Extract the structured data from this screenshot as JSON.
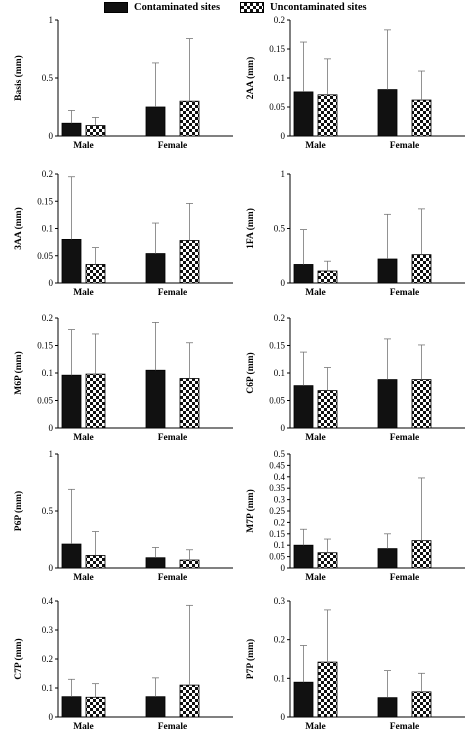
{
  "legend": {
    "contaminated": "Contaminated sites",
    "uncontaminated": "Uncontaminated sites"
  },
  "colors": {
    "contaminated_fill": "#111111",
    "uncontaminated_pattern": "black-white checkerboard"
  },
  "chart_data": [
    {
      "type": "bar",
      "ylabel": "Basis (mm)",
      "ylim": [
        0,
        1
      ],
      "yticks": [
        "0",
        "0.5",
        "1"
      ],
      "categories": [
        "Male",
        "Female"
      ],
      "series": [
        {
          "name": "Contaminated sites",
          "values": [
            0.11,
            0.25
          ],
          "error": [
            0.11,
            0.38
          ]
        },
        {
          "name": "Uncontaminated sites",
          "values": [
            0.09,
            0.3
          ],
          "error": [
            0.07,
            0.54
          ]
        }
      ]
    },
    {
      "type": "bar",
      "ylabel": "2AA (mm)",
      "ylim": [
        0,
        0.2
      ],
      "yticks": [
        "0",
        "0.05",
        "0.1",
        "0.15",
        "0.2"
      ],
      "categories": [
        "Male",
        "Female"
      ],
      "series": [
        {
          "name": "Contaminated sites",
          "values": [
            0.076,
            0.08
          ],
          "error": [
            0.086,
            0.103
          ]
        },
        {
          "name": "Uncontaminated sites",
          "values": [
            0.071,
            0.062
          ],
          "error": [
            0.062,
            0.05
          ]
        }
      ]
    },
    {
      "type": "bar",
      "ylabel": "3AA (mm)",
      "ylim": [
        0,
        0.2
      ],
      "yticks": [
        "0",
        "0.05",
        "0.1",
        "0.15",
        "0.2"
      ],
      "categories": [
        "Male",
        "Female"
      ],
      "series": [
        {
          "name": "Contaminated sites",
          "values": [
            0.08,
            0.054
          ],
          "error": [
            0.115,
            0.056
          ]
        },
        {
          "name": "Uncontaminated sites",
          "values": [
            0.034,
            0.078
          ],
          "error": [
            0.031,
            0.068
          ]
        }
      ]
    },
    {
      "type": "bar",
      "ylabel": "1FA (mm)",
      "ylim": [
        0,
        1
      ],
      "yticks": [
        "0",
        "0.5",
        "1"
      ],
      "categories": [
        "Male",
        "Female"
      ],
      "series": [
        {
          "name": "Contaminated sites",
          "values": [
            0.17,
            0.22
          ],
          "error": [
            0.32,
            0.41
          ]
        },
        {
          "name": "Uncontaminated sites",
          "values": [
            0.11,
            0.26
          ],
          "error": [
            0.09,
            0.42
          ]
        }
      ]
    },
    {
      "type": "bar",
      "ylabel": "M6P (mm)",
      "ylim": [
        0,
        0.2
      ],
      "yticks": [
        "0",
        "0.05",
        "0.1",
        "0.15",
        "0.2"
      ],
      "categories": [
        "Male",
        "Female"
      ],
      "series": [
        {
          "name": "Contaminated sites",
          "values": [
            0.096,
            0.105
          ],
          "error": [
            0.083,
            0.087
          ]
        },
        {
          "name": "Uncontaminated sites",
          "values": [
            0.098,
            0.09
          ],
          "error": [
            0.073,
            0.065
          ]
        }
      ]
    },
    {
      "type": "bar",
      "ylabel": "C6P (mm)",
      "ylim": [
        0,
        0.2
      ],
      "yticks": [
        "0",
        "0.05",
        "0.1",
        "0.15",
        "0.2"
      ],
      "categories": [
        "Male",
        "Female"
      ],
      "series": [
        {
          "name": "Contaminated sites",
          "values": [
            0.077,
            0.088
          ],
          "error": [
            0.061,
            0.074
          ]
        },
        {
          "name": "Uncontaminated sites",
          "values": [
            0.068,
            0.088
          ],
          "error": [
            0.042,
            0.063
          ]
        }
      ]
    },
    {
      "type": "bar",
      "ylabel": "P6P (mm)",
      "ylim": [
        0,
        1
      ],
      "yticks": [
        "0",
        "0.5",
        "1"
      ],
      "categories": [
        "Male",
        "Female"
      ],
      "series": [
        {
          "name": "Contaminated sites",
          "values": [
            0.21,
            0.09
          ],
          "error": [
            0.48,
            0.09
          ]
        },
        {
          "name": "Uncontaminated sites",
          "values": [
            0.11,
            0.07
          ],
          "error": [
            0.21,
            0.09
          ]
        }
      ]
    },
    {
      "type": "bar",
      "ylabel": "M7P (mm)",
      "ylim": [
        0,
        0.5
      ],
      "yticks": [
        "0",
        "0.05",
        "0.1",
        "0.15",
        "0.2",
        "0.25",
        "0.3",
        "0.35",
        "0.4",
        "0.45",
        "0.5"
      ],
      "categories": [
        "Male",
        "Female"
      ],
      "series": [
        {
          "name": "Contaminated sites",
          "values": [
            0.1,
            0.085
          ],
          "error": [
            0.07,
            0.065
          ]
        },
        {
          "name": "Uncontaminated sites",
          "values": [
            0.067,
            0.12
          ],
          "error": [
            0.06,
            0.275
          ]
        }
      ]
    },
    {
      "type": "bar",
      "ylabel": "C7P (mm)",
      "ylim": [
        0,
        0.4
      ],
      "yticks": [
        "0",
        "0.1",
        "0.2",
        "0.3",
        "0.4"
      ],
      "categories": [
        "Male",
        "Female"
      ],
      "series": [
        {
          "name": "Contaminated sites",
          "values": [
            0.07,
            0.07
          ],
          "error": [
            0.06,
            0.065
          ]
        },
        {
          "name": "Uncontaminated sites",
          "values": [
            0.068,
            0.11
          ],
          "error": [
            0.047,
            0.275
          ]
        }
      ]
    },
    {
      "type": "bar",
      "ylabel": "P7P (mm)",
      "ylim": [
        0,
        0.3
      ],
      "yticks": [
        "0",
        "0.1",
        "0.2",
        "0.3"
      ],
      "categories": [
        "Male",
        "Female"
      ],
      "series": [
        {
          "name": "Contaminated sites",
          "values": [
            0.09,
            0.05
          ],
          "error": [
            0.095,
            0.07
          ]
        },
        {
          "name": "Uncontaminated sites",
          "values": [
            0.142,
            0.065
          ],
          "error": [
            0.135,
            0.048
          ]
        }
      ]
    }
  ]
}
